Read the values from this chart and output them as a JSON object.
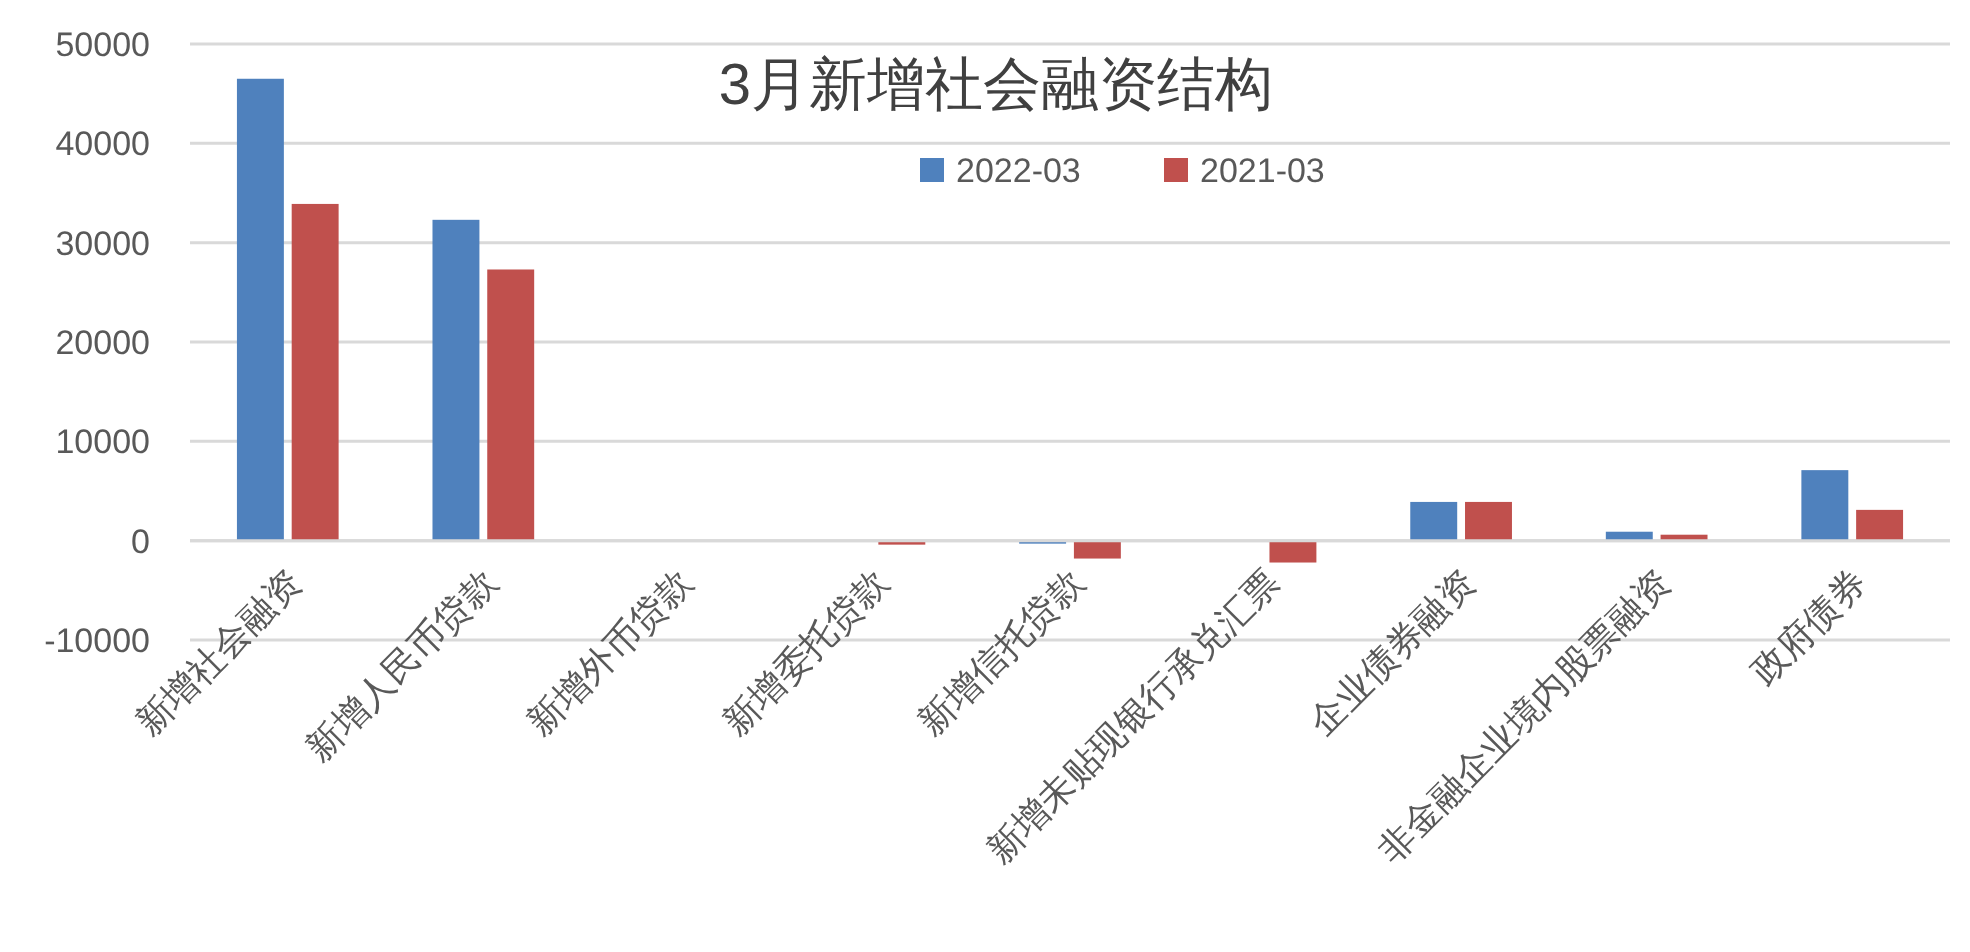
{
  "chart_data": {
    "type": "bar",
    "title": "3月新增社会融资结构",
    "categories": [
      "新增社会融资",
      "新增人民币贷款",
      "新增外币贷款",
      "新增委托贷款",
      "新增信托贷款",
      "新增未贴现银行承兑汇票",
      "企业债券融资",
      "非金融企业境内股票融资",
      "政府债券"
    ],
    "series": [
      {
        "name": "2022-03",
        "color": "#4f81bd",
        "values": [
          46500,
          32300,
          null,
          null,
          -300,
          null,
          3900,
          900,
          7100
        ]
      },
      {
        "name": "2021-03",
        "color": "#c0504d",
        "values": [
          33900,
          27300,
          null,
          -400,
          -1800,
          -2200,
          3900,
          600,
          3100
        ]
      }
    ],
    "ylim": [
      -10000,
      50000
    ],
    "yticks": [
      -10000,
      0,
      10000,
      20000,
      30000,
      40000,
      50000
    ],
    "grid": "y",
    "legend": "top"
  }
}
